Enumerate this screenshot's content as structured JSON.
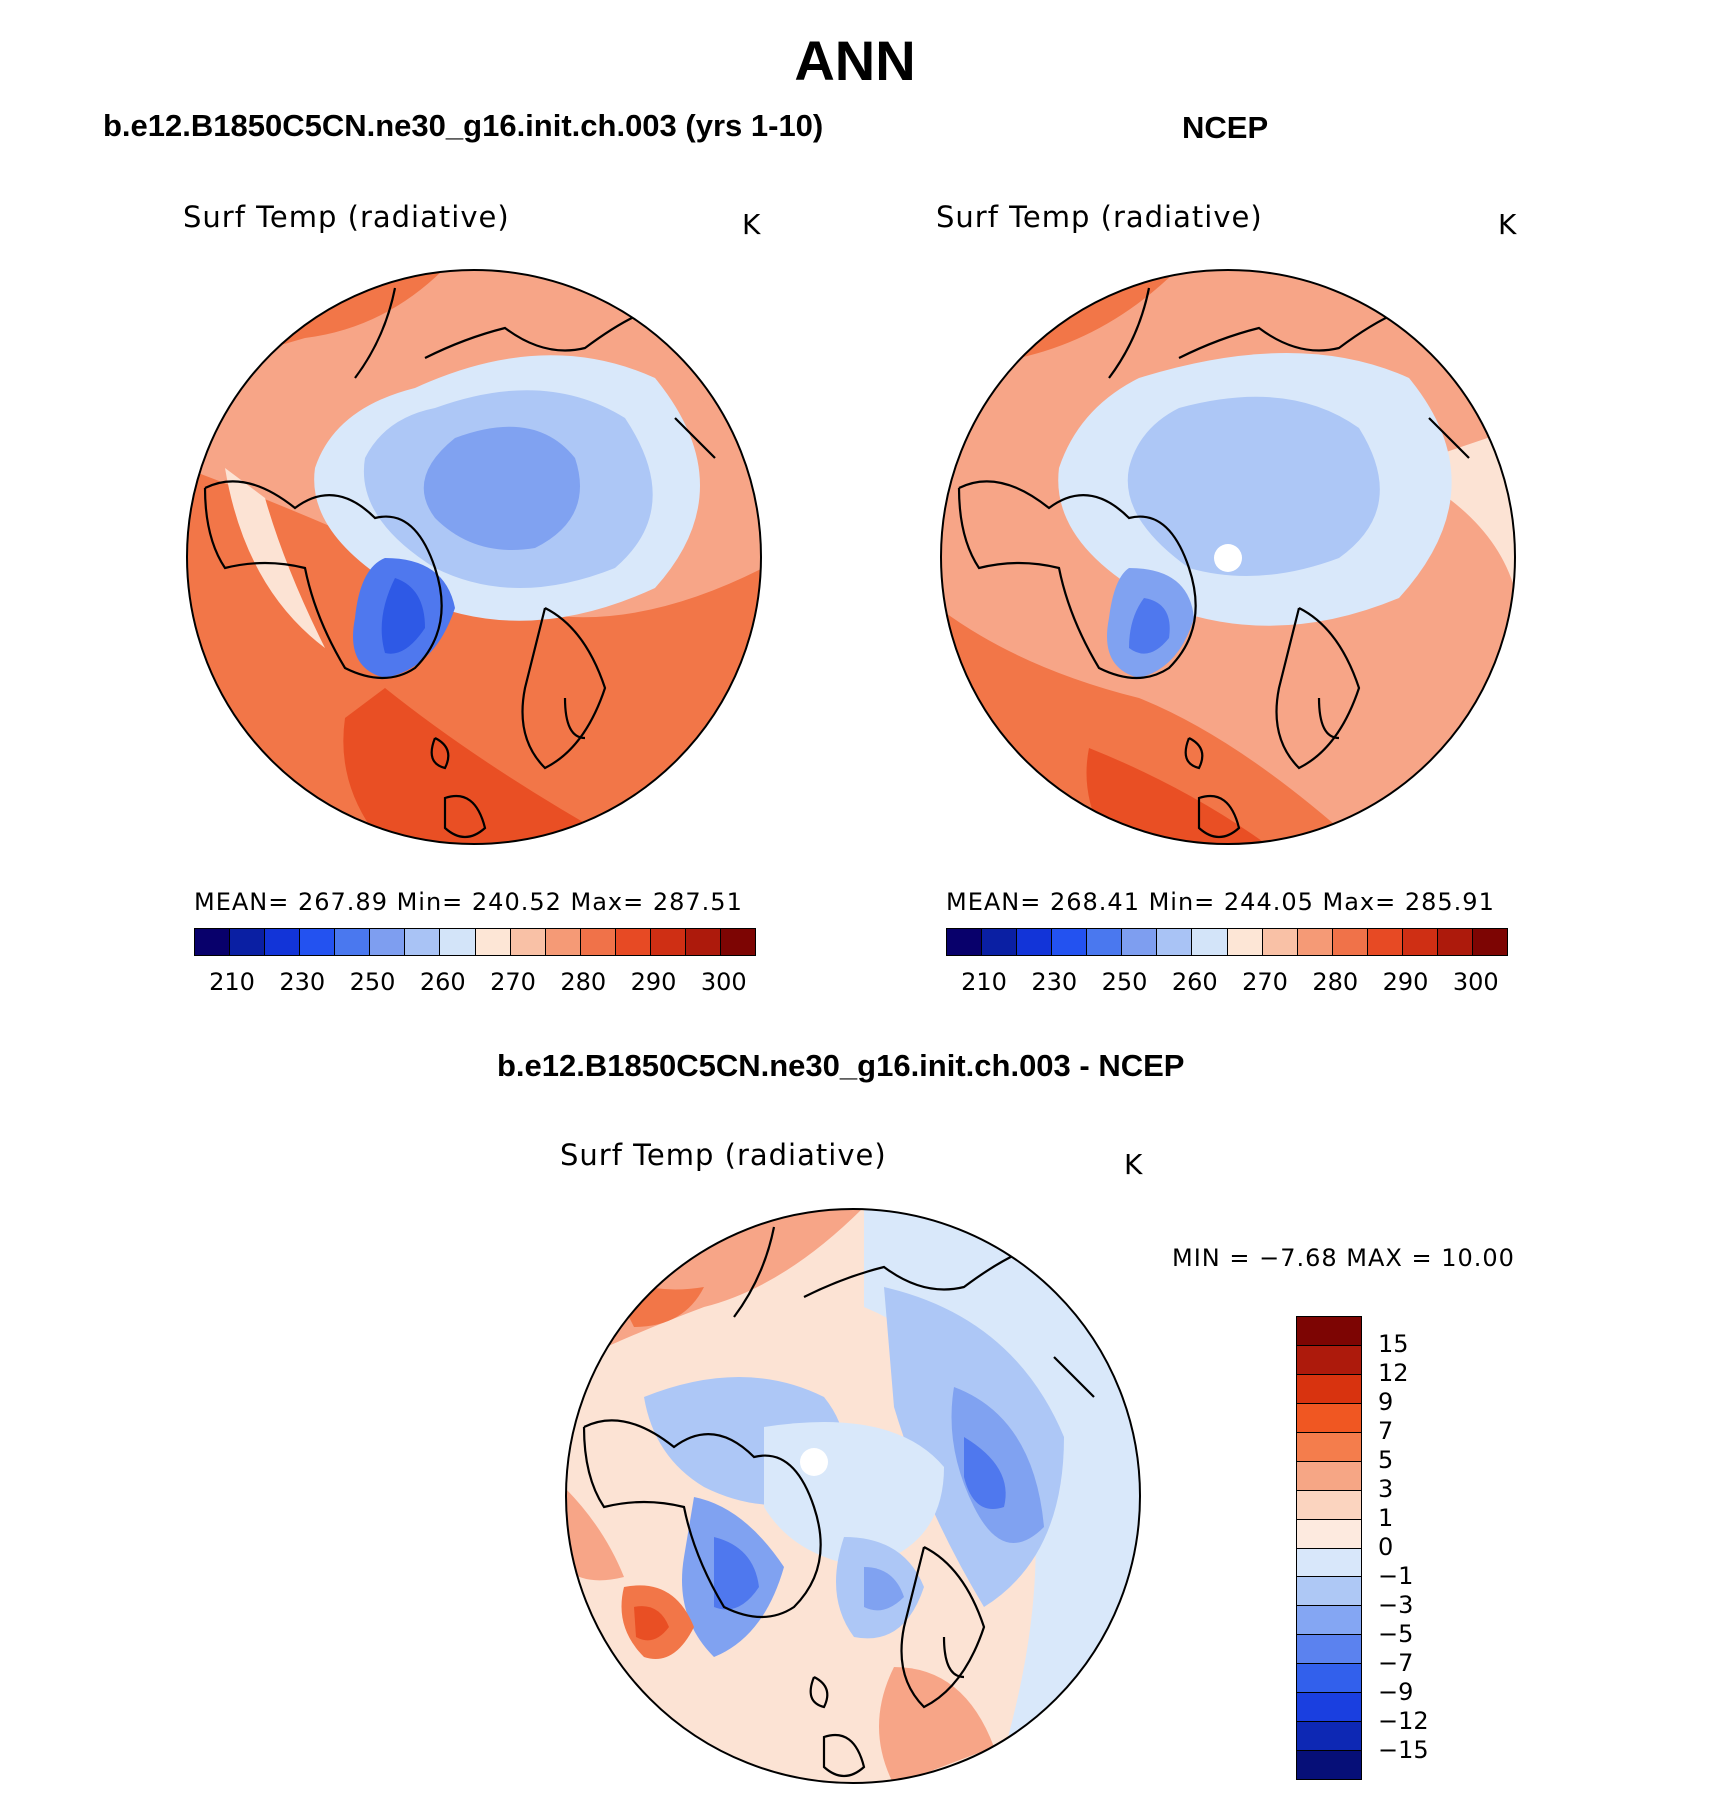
{
  "main_title": "ANN",
  "panels": [
    {
      "title": "b.e12.B1850C5CN.ne30_g16.init.ch.003 (yrs 1-10)",
      "variable": "Surf Temp (radiative)",
      "unit": "K",
      "stats": "MEAN= 267.89   Min= 240.52   Max= 287.51"
    },
    {
      "title": "NCEP",
      "variable": "Surf Temp (radiative)",
      "unit": "K",
      "stats": "MEAN= 268.41   Min= 244.05   Max= 285.91"
    }
  ],
  "abs_colorbar": {
    "colors": [
      "#08006b",
      "#0a1fa3",
      "#1234d8",
      "#2352f0",
      "#4a78ef",
      "#7e9ef0",
      "#a9c3f5",
      "#d3e4f9",
      "#fde6d6",
      "#f9c1a6",
      "#f59a76",
      "#f07249",
      "#e74a24",
      "#cf2f14",
      "#ad1a0c",
      "#7d0503"
    ],
    "ticks": [
      "210",
      "230",
      "250",
      "260",
      "270",
      "280",
      "290",
      "300"
    ]
  },
  "diff_panel": {
    "title": "b.e12.B1850C5CN.ne30_g16.init.ch.003 - NCEP",
    "variable": "Surf Temp (radiative)",
    "unit": "K",
    "minmax": "MIN =   −7.68  MAX =    10.00",
    "colorbar": {
      "colors": [
        "#7d0503",
        "#ad1a0c",
        "#d8330f",
        "#f05722",
        "#f47d4c",
        "#f6a685",
        "#fbd4bf",
        "#fdeadf",
        "#d8e7fa",
        "#aec8f5",
        "#84a6f3",
        "#5b82ef",
        "#3260ec",
        "#1a3fe0",
        "#0d28b4",
        "#060f78"
      ],
      "ticks": [
        "15",
        "12",
        "9",
        "7",
        "5",
        "3",
        "1",
        "0",
        "−1",
        "−3",
        "−5",
        "−7",
        "−9",
        "−12",
        "−15"
      ]
    }
  },
  "map_colors": {
    "warm_dark": "#e94f24",
    "warm_mid": "#f27648",
    "warm_light": "#f7a587",
    "warm_pale": "#fce3d4",
    "cold_pale": "#d9e8fa",
    "cold_light": "#adc7f6",
    "cold_mid": "#80a2f1",
    "cold_dark": "#4f78ee",
    "cold_deep": "#2e59e6"
  }
}
